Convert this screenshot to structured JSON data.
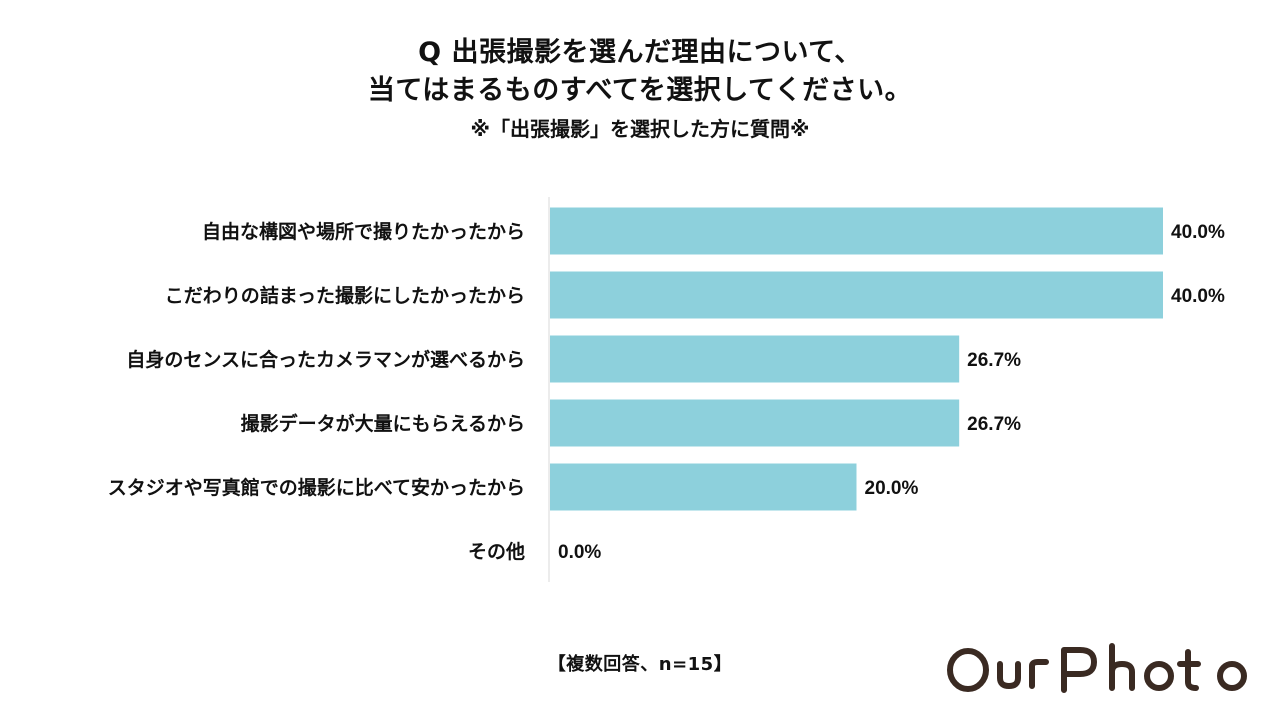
{
  "title": {
    "line1": "Q 出張撮影を選んだ理由について、",
    "line2": "当てはまるものすべてを選択してください。",
    "subtitle": "※「出張撮影」を選択した方に質問※"
  },
  "chart_data": {
    "type": "bar",
    "orientation": "horizontal",
    "categories": [
      "自由な構図や場所で撮りたかったから",
      "こだわりの詰まった撮影にしたかったから",
      "自身のセンスに合ったカメラマンが選べるから",
      "撮影データが大量にもらえるから",
      "スタジオや写真館での撮影に比べて安かったから",
      "その他"
    ],
    "values": [
      40.0,
      40.0,
      26.7,
      26.7,
      20.0,
      0.0
    ],
    "value_labels": [
      "40.0%",
      "40.0%",
      "26.7%",
      "26.7%",
      "20.0%",
      "0.0%"
    ],
    "unit": "%",
    "xlim": [
      0,
      40
    ],
    "bar_color": "#8dd0dc",
    "grid": false,
    "legend": "none"
  },
  "footnote": "【複数回答、n=15】",
  "logo": {
    "text": "OurPhoto",
    "color": "#3a2a22"
  }
}
